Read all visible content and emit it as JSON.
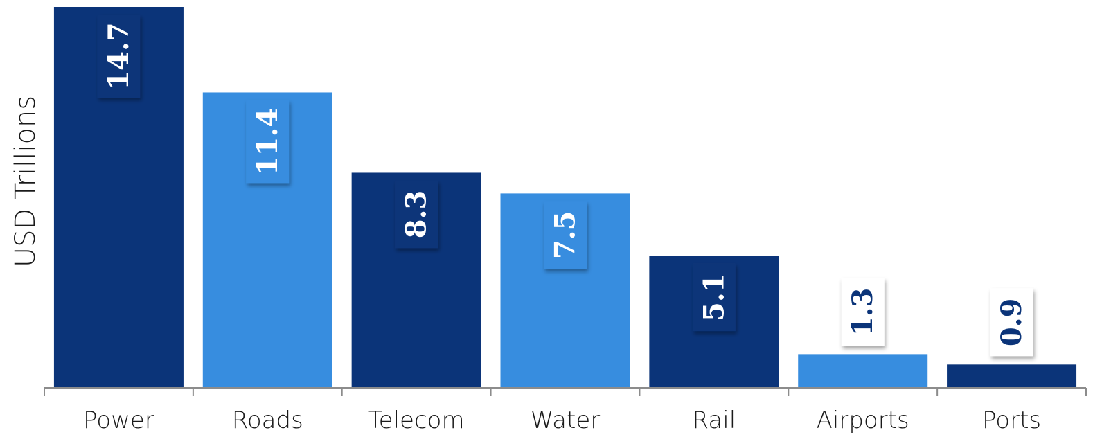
{
  "chart_data": {
    "type": "bar",
    "title": "",
    "xlabel": "",
    "ylabel": "USD Trillions",
    "categories": [
      "Power",
      "Roads",
      "Telecom",
      "Water",
      "Rail",
      "Airports",
      "Ports"
    ],
    "values": [
      14.7,
      11.4,
      8.3,
      7.5,
      5.1,
      1.3,
      0.9
    ],
    "data_labels": [
      "14.7",
      "11.4",
      "8.3",
      "7.5",
      "5.1",
      "1.3",
      "0.9"
    ],
    "ylim": [
      0,
      14.7
    ],
    "grid": false,
    "legend": "none",
    "data_label_orientation": "rotated-vertical"
  },
  "colors": {
    "dark_bar": "#0b3479",
    "light_bar": "#378ddf",
    "white_label_bg": "#ffffff",
    "axis": "#8c8c8c",
    "text": "#1a1a1a"
  }
}
